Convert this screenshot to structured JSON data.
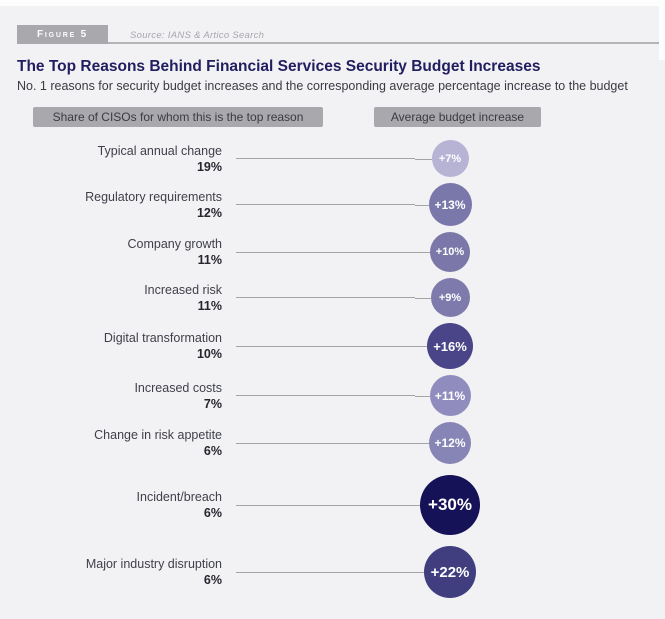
{
  "figure": {
    "label": "Figure 5",
    "source": "Source: IANS & Artico Search"
  },
  "header": {
    "title": "The Top Reasons Behind Financial Services Security Budget Increases",
    "subtitle": "No. 1 reasons for security budget increases and the corresponding average percentage increase to the budget"
  },
  "legend": {
    "left": "Share of CISOs for whom this is the top reason",
    "right": "Average budget increase"
  },
  "rows": [
    {
      "reason": "Typical annual change",
      "share_label": "19%",
      "increase_label": "+7%",
      "share_pct": 19,
      "increase_pct": 7,
      "bubble_color": "#b6b3d4"
    },
    {
      "reason": "Regulatory requirements",
      "share_label": "12%",
      "increase_label": "+13%",
      "share_pct": 12,
      "increase_pct": 13,
      "bubble_color": "#7a77aa"
    },
    {
      "reason": "Company growth",
      "share_label": "11%",
      "increase_label": "+10%",
      "share_pct": 11,
      "increase_pct": 10,
      "bubble_color": "#7b78a9"
    },
    {
      "reason": "Increased risk",
      "share_label": "11%",
      "increase_label": "+9%",
      "share_pct": 11,
      "increase_pct": 9,
      "bubble_color": "#7e7bac"
    },
    {
      "reason": "Digital transformation",
      "share_label": "10%",
      "increase_label": "+16%",
      "share_pct": 10,
      "increase_pct": 16,
      "bubble_color": "#4a4488"
    },
    {
      "reason": "Increased costs",
      "share_label": "7%",
      "increase_label": "+11%",
      "share_pct": 7,
      "increase_pct": 11,
      "bubble_color": "#908dbe"
    },
    {
      "reason": "Change in risk appetite",
      "share_label": "6%",
      "increase_label": "+12%",
      "share_pct": 6,
      "increase_pct": 12,
      "bubble_color": "#8784b6"
    },
    {
      "reason": "Incident/breach",
      "share_label": "6%",
      "increase_label": "+30%",
      "share_pct": 6,
      "increase_pct": 30,
      "bubble_color": "#161257"
    },
    {
      "reason": "Major industry disruption",
      "share_label": "6%",
      "increase_label": "+22%",
      "share_pct": 6,
      "increase_pct": 22,
      "bubble_color": "#403e7e"
    }
  ],
  "chart_data": {
    "type": "bar",
    "variant": "lollipop-bubble",
    "title": "The Top Reasons Behind Financial Services Security Budget Increases",
    "subtitle": "No. 1 reasons for security budget increases and the corresponding average percentage increase to the budget",
    "categories": [
      "Typical annual change",
      "Regulatory requirements",
      "Company growth",
      "Increased risk",
      "Digital transformation",
      "Increased costs",
      "Change in risk appetite",
      "Incident/breach",
      "Major industry disruption"
    ],
    "series": [
      {
        "name": "Share of CISOs for whom this is the top reason",
        "unit": "%",
        "values": [
          19,
          12,
          11,
          11,
          10,
          7,
          6,
          6,
          6
        ]
      },
      {
        "name": "Average budget increase",
        "unit": "%",
        "values": [
          7,
          13,
          10,
          9,
          16,
          11,
          12,
          30,
          22
        ]
      }
    ],
    "legend_position": "top",
    "grid": false,
    "orientation": "horizontal",
    "bubble_encodes": "size and darkness scale with average budget increase",
    "colors": {
      "background": "#f2f2f5",
      "title": "#211d5f",
      "legend_box": "#a8a8ad",
      "connector": "#a3a3a8",
      "bubble_min": "#b6b3d4",
      "bubble_max": "#161257"
    }
  }
}
